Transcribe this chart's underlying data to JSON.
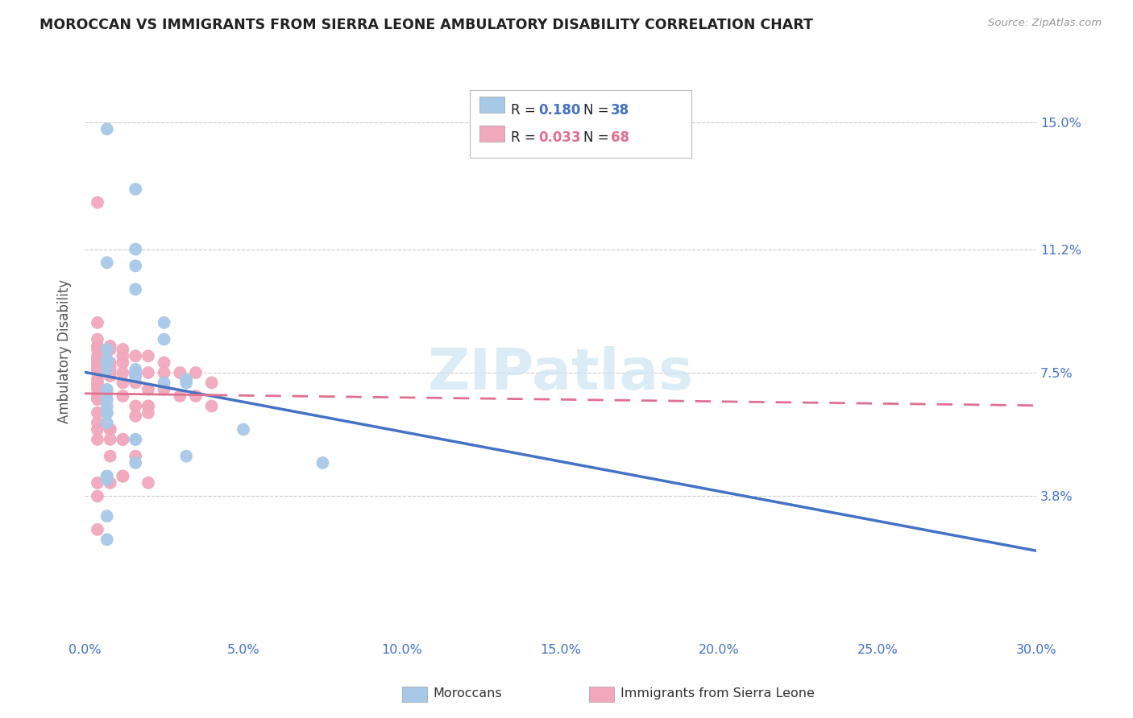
{
  "title": "MOROCCAN VS IMMIGRANTS FROM SIERRA LEONE AMBULATORY DISABILITY CORRELATION CHART",
  "source": "Source: ZipAtlas.com",
  "ylabel": "Ambulatory Disability",
  "xmin": 0.0,
  "xmax": 0.3,
  "ymin": -0.005,
  "ymax": 0.168,
  "moroccan_color": "#a8c8e8",
  "sl_color": "#f2a8bc",
  "moroccan_line_color": "#4472C4",
  "sl_line_color": "#E07090",
  "watermark": "ZIPatlas",
  "moroccan_x": [
    0.007,
    0.016,
    0.007,
    0.016,
    0.016,
    0.016,
    0.025,
    0.025,
    0.007,
    0.007,
    0.007,
    0.007,
    0.007,
    0.016,
    0.016,
    0.016,
    0.016,
    0.032,
    0.025,
    0.032,
    0.007,
    0.007,
    0.007,
    0.007,
    0.007,
    0.007,
    0.007,
    0.05,
    0.016,
    0.016,
    0.032,
    0.016,
    0.075,
    0.007,
    0.007,
    0.007,
    0.007,
    0.007
  ],
  "moroccan_y": [
    0.148,
    0.13,
    0.108,
    0.112,
    0.107,
    0.1,
    0.09,
    0.085,
    0.082,
    0.079,
    0.078,
    0.078,
    0.076,
    0.076,
    0.075,
    0.074,
    0.074,
    0.073,
    0.072,
    0.072,
    0.07,
    0.069,
    0.067,
    0.065,
    0.063,
    0.063,
    0.06,
    0.058,
    0.055,
    0.055,
    0.05,
    0.048,
    0.048,
    0.044,
    0.044,
    0.043,
    0.032,
    0.025
  ],
  "sl_x": [
    0.004,
    0.004,
    0.004,
    0.004,
    0.004,
    0.004,
    0.004,
    0.004,
    0.004,
    0.004,
    0.004,
    0.004,
    0.004,
    0.004,
    0.004,
    0.008,
    0.008,
    0.008,
    0.008,
    0.008,
    0.008,
    0.008,
    0.012,
    0.012,
    0.012,
    0.012,
    0.012,
    0.012,
    0.016,
    0.016,
    0.016,
    0.016,
    0.02,
    0.02,
    0.02,
    0.02,
    0.025,
    0.025,
    0.025,
    0.03,
    0.03,
    0.035,
    0.035,
    0.04,
    0.04,
    0.004,
    0.004,
    0.004,
    0.008,
    0.008,
    0.012,
    0.016,
    0.02,
    0.012,
    0.016,
    0.004,
    0.004,
    0.004,
    0.004,
    0.008,
    0.008,
    0.008,
    0.012,
    0.012,
    0.02,
    0.02,
    0.004,
    0.004
  ],
  "sl_y": [
    0.126,
    0.09,
    0.085,
    0.083,
    0.082,
    0.08,
    0.079,
    0.078,
    0.077,
    0.076,
    0.075,
    0.073,
    0.072,
    0.071,
    0.07,
    0.083,
    0.082,
    0.078,
    0.077,
    0.076,
    0.075,
    0.074,
    0.082,
    0.08,
    0.078,
    0.075,
    0.072,
    0.068,
    0.08,
    0.075,
    0.072,
    0.065,
    0.08,
    0.075,
    0.07,
    0.065,
    0.078,
    0.075,
    0.07,
    0.075,
    0.068,
    0.075,
    0.068,
    0.072,
    0.065,
    0.06,
    0.058,
    0.055,
    0.058,
    0.055,
    0.055,
    0.05,
    0.042,
    0.044,
    0.062,
    0.068,
    0.067,
    0.063,
    0.042,
    0.058,
    0.05,
    0.042,
    0.055,
    0.044,
    0.065,
    0.063,
    0.038,
    0.028
  ]
}
